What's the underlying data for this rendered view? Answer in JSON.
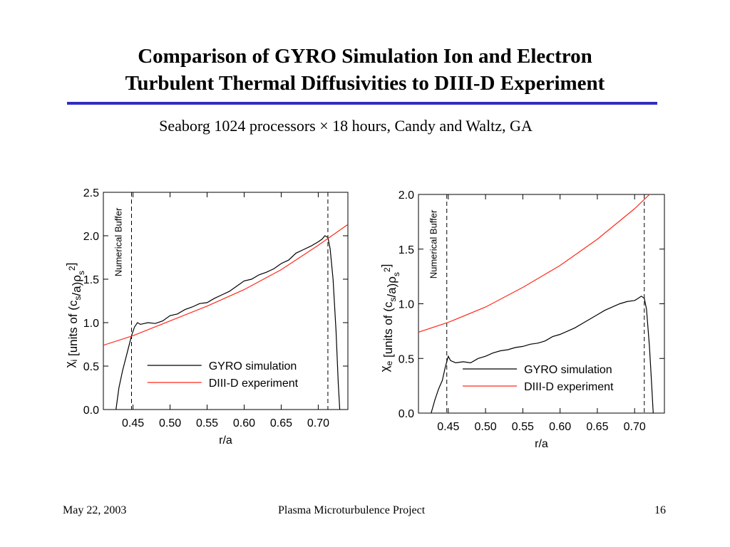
{
  "slide": {
    "title_line1": "Comparison of GYRO Simulation Ion and Electron",
    "title_line2": "Turbulent Thermal Diffusivities to DIII-D Experiment",
    "subtitle": "Seaborg 1024 processors × 18 hours, Candy and Waltz, GA",
    "footer": {
      "date": "May  22, 2003",
      "project": "Plasma Microturbulence Project",
      "page": "16"
    },
    "accent_color": "#2f2fbf"
  },
  "chart_data": [
    {
      "type": "line",
      "ylabel": "χi [units of (cs/a)ρs2]",
      "xlabel": "r/a",
      "xlim": [
        0.41,
        0.74
      ],
      "ylim": [
        0.0,
        2.5
      ],
      "xticks": [
        "0.45",
        "0.50",
        "0.55",
        "0.60",
        "0.65",
        "0.70"
      ],
      "yticks": [
        "0.0",
        "0.5",
        "1.0",
        "1.5",
        "2.0",
        "2.5"
      ],
      "annotation": "Numerical Buffer",
      "buffer_lines": [
        0.448,
        0.713
      ],
      "legend": "bottom-right",
      "series": [
        {
          "name": "GYRO simulation",
          "color": "#000000",
          "x": [
            0.427,
            0.431,
            0.436,
            0.442,
            0.448,
            0.452,
            0.456,
            0.46,
            0.47,
            0.48,
            0.49,
            0.5,
            0.51,
            0.52,
            0.53,
            0.54,
            0.55,
            0.56,
            0.57,
            0.58,
            0.59,
            0.6,
            0.61,
            0.62,
            0.63,
            0.64,
            0.65,
            0.66,
            0.67,
            0.68,
            0.69,
            0.7,
            0.705,
            0.709,
            0.713,
            0.716,
            0.72,
            0.724,
            0.727,
            0.729
          ],
          "y": [
            0.0,
            0.25,
            0.45,
            0.65,
            0.85,
            0.95,
            1.0,
            0.98,
            1.0,
            0.99,
            1.02,
            1.08,
            1.1,
            1.15,
            1.18,
            1.22,
            1.23,
            1.28,
            1.32,
            1.36,
            1.42,
            1.48,
            1.5,
            1.55,
            1.58,
            1.62,
            1.68,
            1.72,
            1.8,
            1.84,
            1.88,
            1.93,
            1.96,
            2.0,
            1.98,
            1.85,
            1.5,
            0.9,
            0.3,
            0.0
          ]
        },
        {
          "name": "DIII-D experiment",
          "color": "#ff2a1a",
          "x": [
            0.41,
            0.45,
            0.5,
            0.55,
            0.6,
            0.65,
            0.7,
            0.74
          ],
          "y": [
            0.74,
            0.85,
            1.02,
            1.19,
            1.38,
            1.61,
            1.89,
            2.13
          ]
        }
      ]
    },
    {
      "type": "line",
      "ylabel": "χe [units of (cs/a)ρs2]",
      "xlabel": "r/a",
      "xlim": [
        0.41,
        0.74
      ],
      "ylim": [
        0.0,
        2.0
      ],
      "xticks": [
        "0.45",
        "0.50",
        "0.55",
        "0.60",
        "0.65",
        "0.70"
      ],
      "yticks": [
        "0.0",
        "0.5",
        "1.0",
        "1.5",
        "2.0"
      ],
      "annotation": "Numerical Buffer",
      "buffer_lines": [
        0.448,
        0.713
      ],
      "legend": "bottom-right",
      "series": [
        {
          "name": "GYRO simulation",
          "color": "#000000",
          "x": [
            0.427,
            0.432,
            0.437,
            0.442,
            0.446,
            0.45,
            0.453,
            0.46,
            0.47,
            0.48,
            0.49,
            0.5,
            0.51,
            0.52,
            0.53,
            0.54,
            0.55,
            0.56,
            0.57,
            0.58,
            0.59,
            0.6,
            0.61,
            0.62,
            0.63,
            0.64,
            0.65,
            0.66,
            0.67,
            0.68,
            0.69,
            0.7,
            0.705,
            0.709,
            0.713,
            0.716,
            0.72,
            0.723,
            0.725
          ],
          "y": [
            0.0,
            0.12,
            0.22,
            0.3,
            0.42,
            0.52,
            0.48,
            0.46,
            0.47,
            0.46,
            0.5,
            0.52,
            0.55,
            0.57,
            0.58,
            0.6,
            0.61,
            0.63,
            0.64,
            0.66,
            0.7,
            0.72,
            0.75,
            0.78,
            0.82,
            0.86,
            0.9,
            0.94,
            0.97,
            1.0,
            1.02,
            1.03,
            1.05,
            1.07,
            1.05,
            0.95,
            0.6,
            0.25,
            0.0
          ]
        },
        {
          "name": "DIII-D experiment",
          "color": "#ff2a1a",
          "x": [
            0.41,
            0.45,
            0.5,
            0.55,
            0.6,
            0.65,
            0.7,
            0.72
          ],
          "y": [
            0.74,
            0.83,
            0.97,
            1.15,
            1.35,
            1.59,
            1.87,
            2.0
          ]
        }
      ]
    }
  ]
}
